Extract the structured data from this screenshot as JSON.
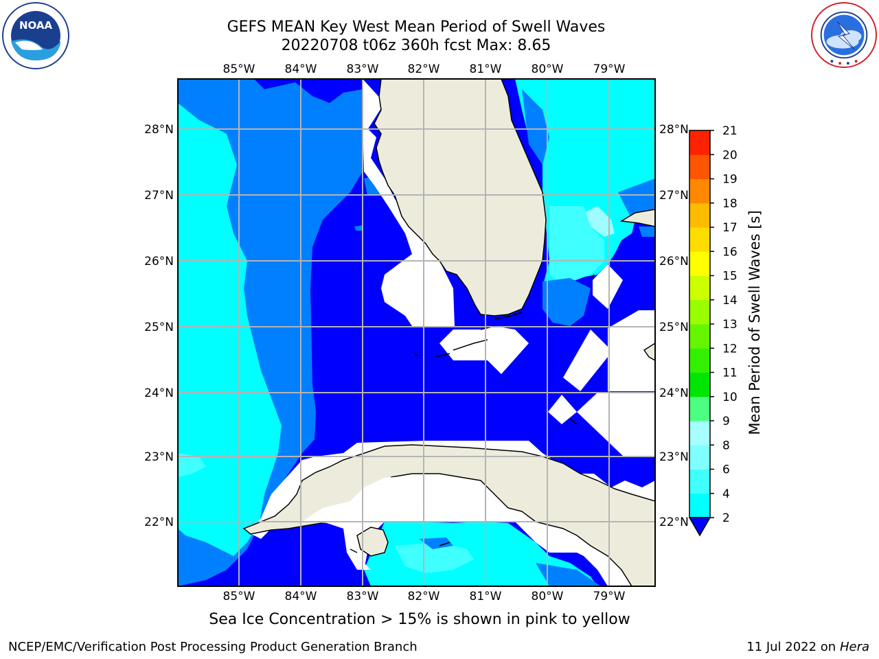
{
  "title": {
    "line1": "GEFS MEAN Key West Mean Period of Swell Waves",
    "line2": "20220708 t06z 360h fcst   Max: 8.65"
  },
  "logos": {
    "left": {
      "text": "NOAA",
      "ring_text": "NATIONAL OCEANIC AND ATMOSPHERIC ADMINISTRATION · U.S. DEPARTMENT OF COMMERCE"
    },
    "right": {
      "ring_text": "NATIONAL WEATHER SERVICE"
    }
  },
  "map": {
    "lon_labels": [
      "85°W",
      "84°W",
      "83°W",
      "82°W",
      "81°W",
      "80°W",
      "79°W"
    ],
    "lat_labels": [
      "28°N",
      "27°N",
      "26°N",
      "25°N",
      "24°N",
      "23°N",
      "22°N"
    ],
    "colors": {
      "land": "#edecdc",
      "mask": "#ffffff",
      "deep_blue": "#0000ff",
      "mid_blue": "#0080ff",
      "cyan": "#00ffff",
      "light_cyan": "#40ffff",
      "pale_cyan": "#9ffcff",
      "grid": "#b4b4b4"
    }
  },
  "colorbar": {
    "label": "Mean Period of Swell Waves [s]",
    "ticks": [
      "2",
      "4",
      "6",
      "8",
      "9",
      "10",
      "11",
      "12",
      "13",
      "14",
      "15",
      "16",
      "17",
      "18",
      "19",
      "20",
      "21"
    ],
    "colors": [
      "#0066ff",
      "#00ffff",
      "#40ffff",
      "#80ffff",
      "#a6ffff",
      "#4dff80",
      "#00e600",
      "#33f000",
      "#66f500",
      "#99ff00",
      "#ccff00",
      "#ffff00",
      "#ffdd00",
      "#ffbb00",
      "#ff8800",
      "#ff5500",
      "#ff2200",
      "#ff0000"
    ]
  },
  "note": "Sea Ice Concentration > 15% is shown in pink to yellow",
  "footer": {
    "left": "NCEP/EMC/Verification Post Processing Product Generation Branch",
    "date": "11 Jul 2022 on",
    "machine": "Hera"
  }
}
